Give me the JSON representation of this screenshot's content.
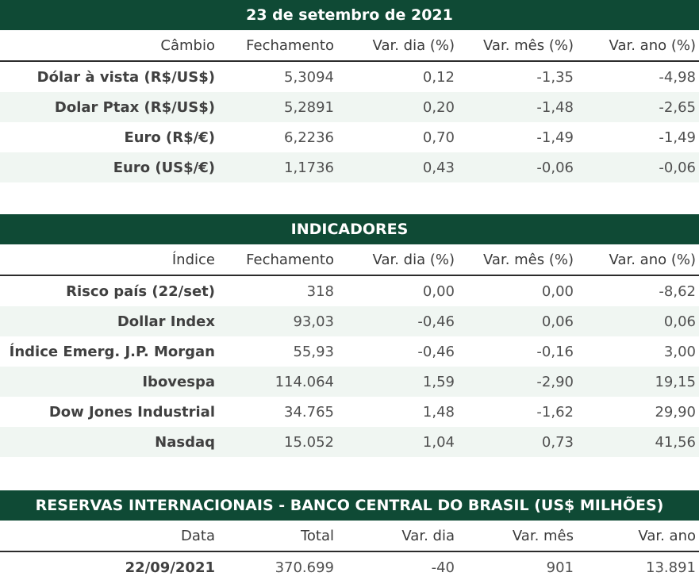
{
  "cambio": {
    "title": "23 de setembro de 2021",
    "headers": [
      "Câmbio",
      "Fechamento",
      "Var. dia (%)",
      "Var. mês (%)",
      "Var. ano (%)"
    ],
    "rows": [
      {
        "label": "Dólar à vista (R$/US$)",
        "close": "5,3094",
        "day": "0,12",
        "month": "-1,35",
        "year": "-4,98"
      },
      {
        "label": "Dolar Ptax (R$/US$)",
        "close": "5,2891",
        "day": "0,20",
        "month": "-1,48",
        "year": "-2,65"
      },
      {
        "label": "Euro (R$/€)",
        "close": "6,2236",
        "day": "0,70",
        "month": "-1,49",
        "year": "-1,49"
      },
      {
        "label": "Euro (US$/€)",
        "close": "1,1736",
        "day": "0,43",
        "month": "-0,06",
        "year": "-0,06"
      }
    ]
  },
  "indicadores": {
    "title": "INDICADORES",
    "headers": [
      "Índice",
      "Fechamento",
      "Var. dia (%)",
      "Var. mês (%)",
      "Var. ano (%)"
    ],
    "rows": [
      {
        "label": "Risco país (22/set)",
        "close": "318",
        "day": "0,00",
        "month": "0,00",
        "year": "-8,62"
      },
      {
        "label": "Dollar Index",
        "close": "93,03",
        "day": "-0,46",
        "month": "0,06",
        "year": "0,06"
      },
      {
        "label": "Índice Emerg. J.P. Morgan",
        "close": "55,93",
        "day": "-0,46",
        "month": "-0,16",
        "year": "3,00"
      },
      {
        "label": "Ibovespa",
        "close": "114.064",
        "day": "1,59",
        "month": "-2,90",
        "year": "19,15"
      },
      {
        "label": "Dow Jones Industrial",
        "close": "34.765",
        "day": "1,48",
        "month": "-1,62",
        "year": "29,90"
      },
      {
        "label": "Nasdaq",
        "close": "15.052",
        "day": "1,04",
        "month": "0,73",
        "year": "41,56"
      }
    ]
  },
  "reservas": {
    "title": "RESERVAS INTERNACIONAIS - BANCO CENTRAL DO BRASIL (US$ MILHÕES)",
    "headers": [
      "Data",
      "Total",
      "Var. dia",
      "Var. mês",
      "Var. ano"
    ],
    "rows": [
      {
        "label": "22/09/2021",
        "close": "370.699",
        "day": "-40",
        "month": "901",
        "year": "13.891"
      }
    ]
  },
  "colors": {
    "banner": "#0f4a35",
    "positive": "#1f5fa8",
    "negative": "#c0303a",
    "row_alt": "#f0f6f2"
  }
}
